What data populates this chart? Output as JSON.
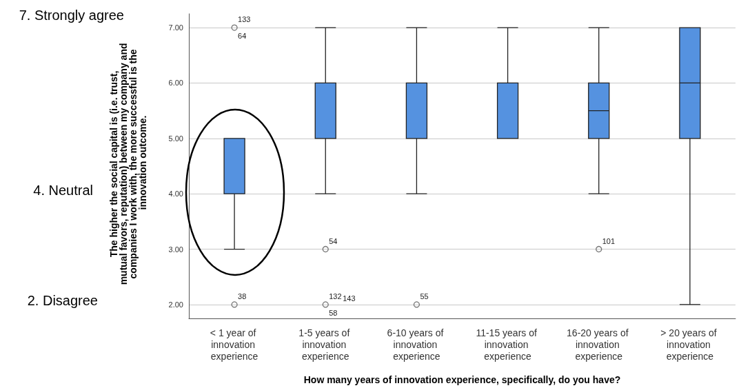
{
  "chart_data": {
    "type": "box",
    "xlabel": "How many years of innovation experience, specifically, do you have?",
    "ylabel": "The higher the social capital is (i.e. trust, mutual favors, reputation) between my company and companies I work with, the more successful is the innovation outcome.",
    "categories": [
      "< 1 year of innovation experience",
      "1-5 years of innovation experience",
      "6-10 years of innovation experience",
      "11-15 years of innovation experience",
      "16-20 years of innovation experience",
      "> 20 years of innovation experience"
    ],
    "color": "#5592e0",
    "boxes": [
      {
        "low": 3,
        "q1": 4,
        "median": 5,
        "q3": 5,
        "high": 5
      },
      {
        "low": 4,
        "q1": 5,
        "median": 6,
        "q3": 6,
        "high": 7
      },
      {
        "low": 4,
        "q1": 5,
        "median": 6,
        "q3": 6,
        "high": 7
      },
      {
        "low": 5,
        "q1": 5,
        "median": 6,
        "q3": 6,
        "high": 7
      },
      {
        "low": 4,
        "q1": 5,
        "median": 5.5,
        "q3": 6,
        "high": 7
      },
      {
        "low": 2,
        "q1": 5,
        "median": 6,
        "q3": 7,
        "high": 7
      }
    ],
    "series": [
      {
        "type": "scatter",
        "marker": "circle",
        "color": "#555555",
        "x": [
          "< 1 year of innovation experience",
          "< 1 year of innovation experience",
          "1-5 years of innovation experience",
          "1-5 years of innovation experience",
          "6-10 years of innovation experience",
          "16-20 years of innovation experience"
        ],
        "values": [
          7,
          2,
          3,
          2,
          2,
          3
        ]
      }
    ],
    "ylim": [
      1.75,
      7.25
    ],
    "yticks": [
      {
        "value": 2,
        "label": "2.00"
      },
      {
        "value": 3,
        "label": "3.00"
      },
      {
        "value": 4,
        "label": "4.00"
      },
      {
        "value": 5,
        "label": "5.00"
      },
      {
        "value": 6,
        "label": "6.00"
      },
      {
        "value": 7,
        "label": "7.00"
      }
    ],
    "grid": "y",
    "annotations": [
      "7. Strongly agree",
      "4. Neutral",
      "2. Disagree",
      {
        "text": "133",
        "x": "< 1 year of innovation experience",
        "y": 7
      },
      {
        "text": "64",
        "x": "< 1 year of innovation experience",
        "y": 7
      },
      {
        "text": "38",
        "x": "< 1 year of innovation experience",
        "y": 2
      },
      {
        "text": "54",
        "x": "1-5 years of innovation experience",
        "y": 3
      },
      {
        "text": "132",
        "x": "1-5 years of innovation experience",
        "y": 2
      },
      {
        "text": "58",
        "x": "1-5 years of innovation experience",
        "y": 2
      },
      {
        "text": "143",
        "x": "1-5 years of innovation experience",
        "y": 2
      },
      {
        "text": "55",
        "x": "6-10 years of innovation experience",
        "y": 2
      },
      {
        "text": "101",
        "x": "16-20 years of innovation experience",
        "y": 3
      }
    ]
  }
}
